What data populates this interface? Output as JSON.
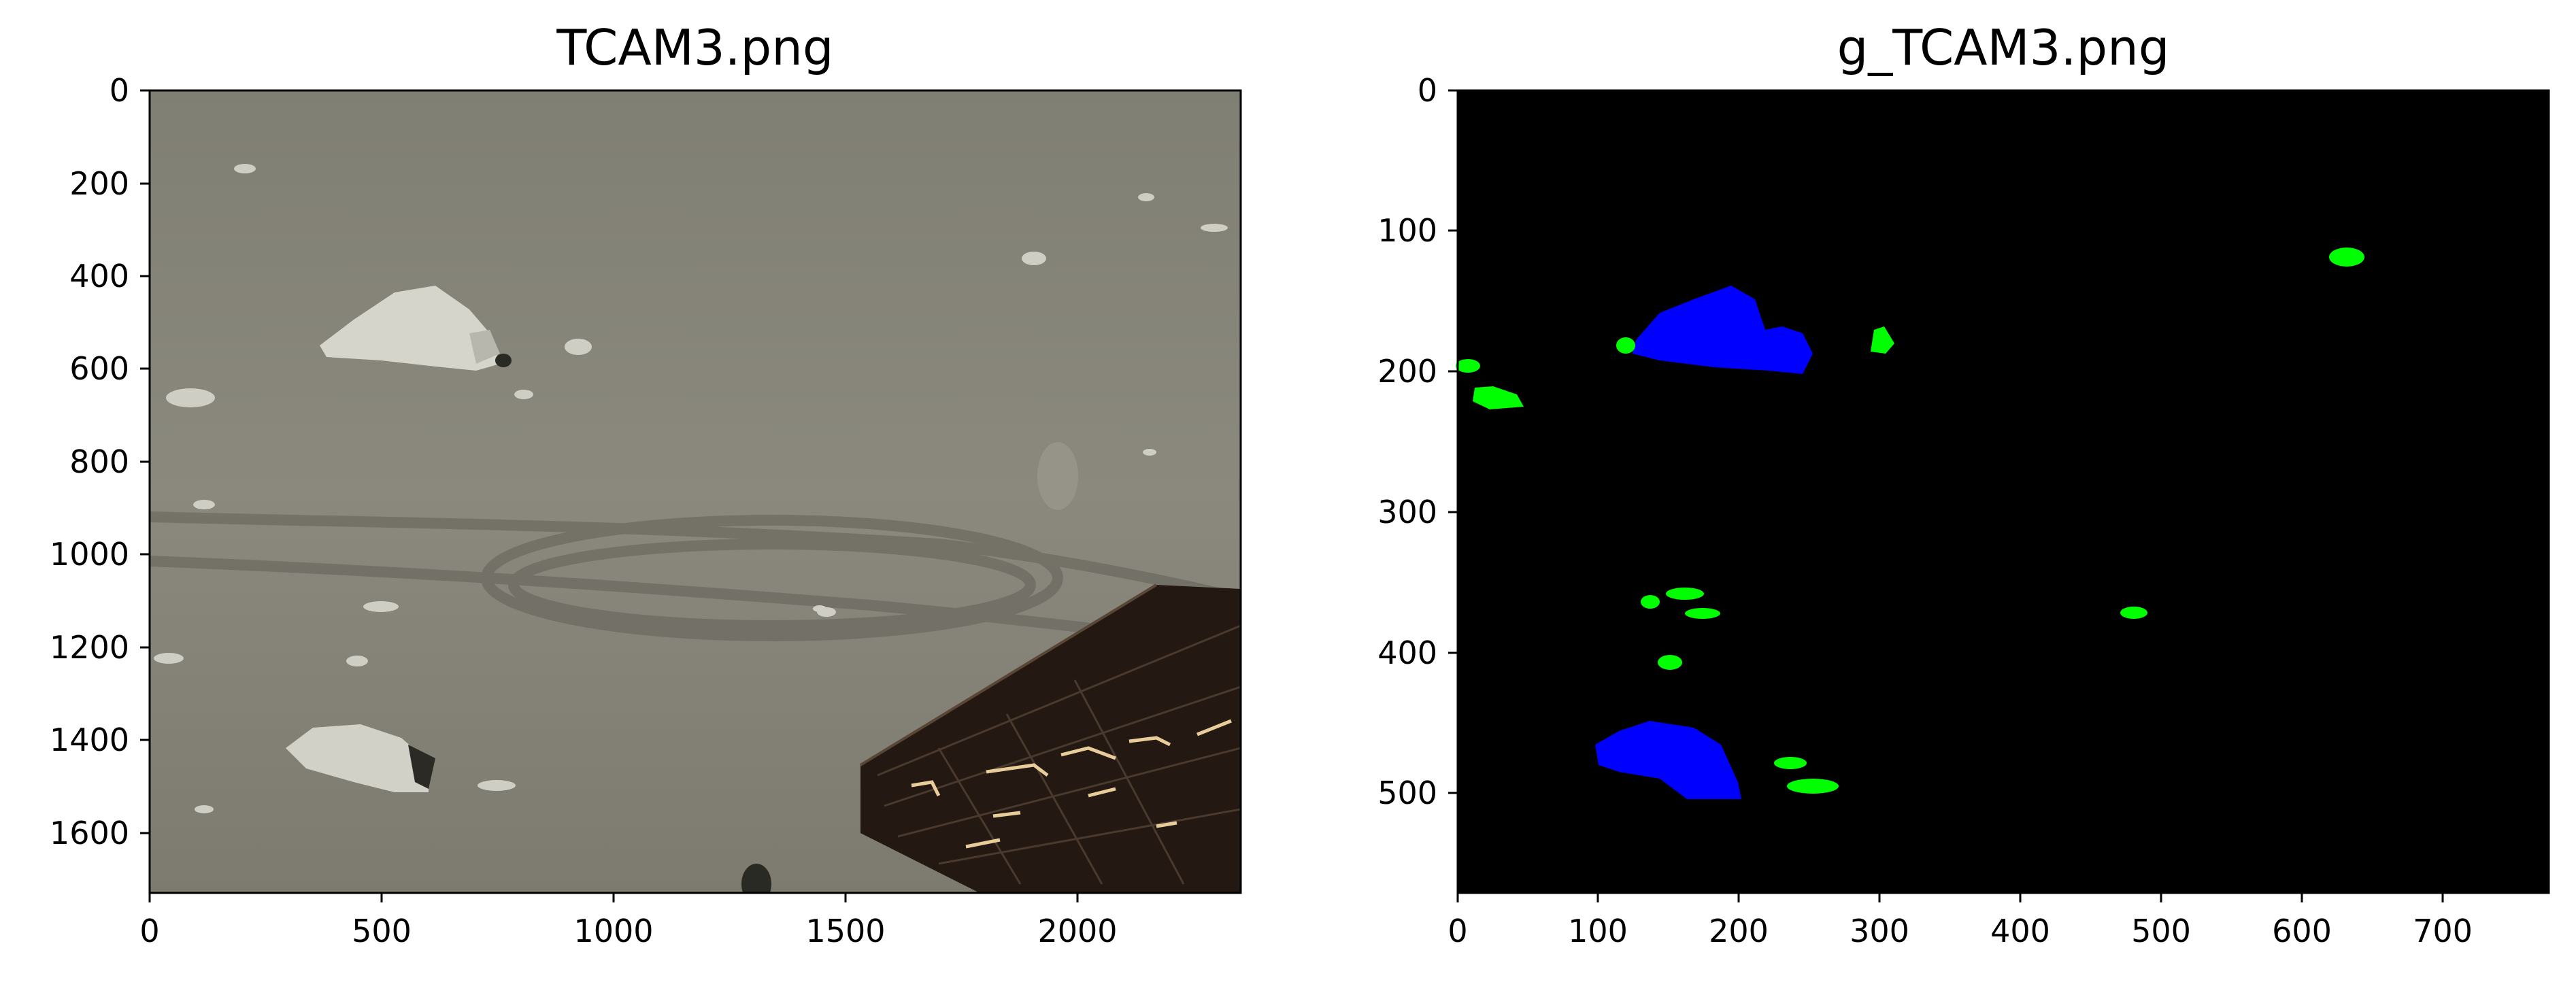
{
  "panels": [
    {
      "title": "TCAM3.png",
      "xticks": [
        "0",
        "500",
        "1000",
        "1500",
        "2000"
      ],
      "yticks": [
        "0",
        "200",
        "400",
        "600",
        "800",
        "1000",
        "1200",
        "1400",
        "1600"
      ]
    },
    {
      "title": "g_TCAM3.png",
      "xticks": [
        "0",
        "100",
        "200",
        "300",
        "400",
        "500",
        "600",
        "700"
      ],
      "yticks": [
        "0",
        "100",
        "200",
        "300",
        "400",
        "500"
      ]
    }
  ],
  "colors": {
    "ground": "#8a887c",
    "mask_background": "#000000",
    "large_rock_mask": "#0000ff",
    "small_rock_mask": "#00ff00"
  }
}
